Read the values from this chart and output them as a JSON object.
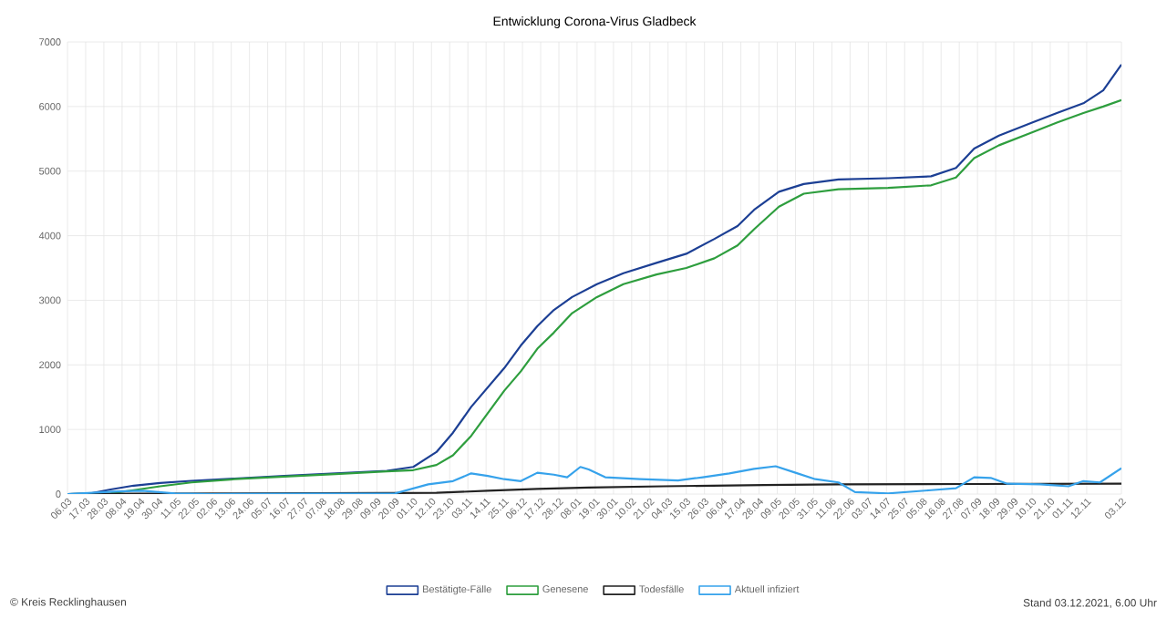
{
  "chart_data": {
    "type": "line",
    "title": "Entwicklung Corona-Virus Gladbeck",
    "xlim": [
      "2020-03-06",
      "2021-12-03"
    ],
    "ylim": [
      0,
      7000
    ],
    "yticks": [
      0,
      1000,
      2000,
      3000,
      4000,
      5000,
      6000,
      7000
    ],
    "xticks": [
      {
        "value": "2020-03-06",
        "label": "06.03"
      },
      {
        "value": "2020-03-17",
        "label": "17.03"
      },
      {
        "value": "2020-03-28",
        "label": "28.03"
      },
      {
        "value": "2020-04-08",
        "label": "08.04"
      },
      {
        "value": "2020-04-19",
        "label": "19.04"
      },
      {
        "value": "2020-04-30",
        "label": "30.04"
      },
      {
        "value": "2020-05-11",
        "label": "11.05"
      },
      {
        "value": "2020-05-22",
        "label": "22.05"
      },
      {
        "value": "2020-06-02",
        "label": "02.06"
      },
      {
        "value": "2020-06-13",
        "label": "13.06"
      },
      {
        "value": "2020-06-24",
        "label": "24.06"
      },
      {
        "value": "2020-07-05",
        "label": "05.07"
      },
      {
        "value": "2020-07-16",
        "label": "16.07"
      },
      {
        "value": "2020-07-27",
        "label": "27.07"
      },
      {
        "value": "2020-08-07",
        "label": "07.08"
      },
      {
        "value": "2020-08-18",
        "label": "18.08"
      },
      {
        "value": "2020-08-29",
        "label": "29.08"
      },
      {
        "value": "2020-09-09",
        "label": "09.09"
      },
      {
        "value": "2020-09-20",
        "label": "20.09"
      },
      {
        "value": "2020-10-01",
        "label": "01.10"
      },
      {
        "value": "2020-10-12",
        "label": "12.10"
      },
      {
        "value": "2020-10-23",
        "label": "23.10"
      },
      {
        "value": "2020-11-03",
        "label": "03.11"
      },
      {
        "value": "2020-11-14",
        "label": "14.11"
      },
      {
        "value": "2020-11-25",
        "label": "25.11"
      },
      {
        "value": "2020-12-06",
        "label": "06.12"
      },
      {
        "value": "2020-12-17",
        "label": "17.12"
      },
      {
        "value": "2020-12-28",
        "label": "28.12"
      },
      {
        "value": "2021-01-08",
        "label": "08.01"
      },
      {
        "value": "2021-01-19",
        "label": "19.01"
      },
      {
        "value": "2021-01-30",
        "label": "30.01"
      },
      {
        "value": "2021-02-10",
        "label": "10.02"
      },
      {
        "value": "2021-02-21",
        "label": "21.02"
      },
      {
        "value": "2021-03-04",
        "label": "04.03"
      },
      {
        "value": "2021-03-15",
        "label": "15.03"
      },
      {
        "value": "2021-03-26",
        "label": "26.03"
      },
      {
        "value": "2021-04-06",
        "label": "06.04"
      },
      {
        "value": "2021-04-17",
        "label": "17.04"
      },
      {
        "value": "2021-04-28",
        "label": "28.04"
      },
      {
        "value": "2021-05-09",
        "label": "09.05"
      },
      {
        "value": "2021-05-20",
        "label": "20.05"
      },
      {
        "value": "2021-05-31",
        "label": "31.05"
      },
      {
        "value": "2021-06-11",
        "label": "11.06"
      },
      {
        "value": "2021-06-22",
        "label": "22.06"
      },
      {
        "value": "2021-07-03",
        "label": "03.07"
      },
      {
        "value": "2021-07-14",
        "label": "14.07"
      },
      {
        "value": "2021-07-25",
        "label": "25.07"
      },
      {
        "value": "2021-08-05",
        "label": "05.08"
      },
      {
        "value": "2021-08-16",
        "label": "16.08"
      },
      {
        "value": "2021-08-27",
        "label": "27.08"
      },
      {
        "value": "2021-09-07",
        "label": "07.09"
      },
      {
        "value": "2021-09-18",
        "label": "18.09"
      },
      {
        "value": "2021-09-29",
        "label": "29.09"
      },
      {
        "value": "2021-10-10",
        "label": "10.10"
      },
      {
        "value": "2021-10-21",
        "label": "21.10"
      },
      {
        "value": "2021-11-01",
        "label": "01.11"
      },
      {
        "value": "2021-11-12",
        "label": "12.11"
      },
      {
        "value": "2021-12-03",
        "label": "03.12"
      }
    ],
    "grid": true,
    "legend": "bottom",
    "marker": "none",
    "line_style": "solid",
    "series": [
      {
        "name": "Bestätigte-Fälle",
        "color": "#1c3f94",
        "x": [
          "2020-03-06",
          "2020-03-20",
          "2020-04-01",
          "2020-04-15",
          "2020-05-01",
          "2020-05-20",
          "2020-06-15",
          "2020-07-15",
          "2020-08-15",
          "2020-09-15",
          "2020-10-01",
          "2020-10-15",
          "2020-10-25",
          "2020-11-05",
          "2020-11-15",
          "2020-11-25",
          "2020-12-05",
          "2020-12-15",
          "2020-12-25",
          "2021-01-05",
          "2021-01-20",
          "2021-02-05",
          "2021-02-25",
          "2021-03-15",
          "2021-04-01",
          "2021-04-15",
          "2021-04-25",
          "2021-05-10",
          "2021-05-25",
          "2021-06-15",
          "2021-07-15",
          "2021-08-10",
          "2021-08-25",
          "2021-09-05",
          "2021-09-20",
          "2021-10-10",
          "2021-10-25",
          "2021-11-10",
          "2021-11-22",
          "2021-12-03"
        ],
        "values": [
          0,
          10,
          70,
          130,
          170,
          205,
          240,
          280,
          320,
          360,
          420,
          650,
          950,
          1350,
          1650,
          1950,
          2300,
          2600,
          2850,
          3050,
          3250,
          3420,
          3580,
          3720,
          3950,
          4150,
          4400,
          4680,
          4800,
          4870,
          4890,
          4920,
          5050,
          5350,
          5550,
          5750,
          5900,
          6050,
          6250,
          6650
        ]
      },
      {
        "name": "Genesene",
        "color": "#2e9e3e",
        "x": [
          "2020-03-06",
          "2020-04-01",
          "2020-04-15",
          "2020-05-01",
          "2020-05-20",
          "2020-06-15",
          "2020-07-15",
          "2020-08-15",
          "2020-09-15",
          "2020-10-01",
          "2020-10-15",
          "2020-10-25",
          "2020-11-05",
          "2020-11-15",
          "2020-11-25",
          "2020-12-05",
          "2020-12-15",
          "2020-12-25",
          "2021-01-05",
          "2021-01-20",
          "2021-02-05",
          "2021-02-25",
          "2021-03-15",
          "2021-04-01",
          "2021-04-15",
          "2021-04-25",
          "2021-05-10",
          "2021-05-25",
          "2021-06-15",
          "2021-07-15",
          "2021-08-10",
          "2021-08-25",
          "2021-09-05",
          "2021-09-20",
          "2021-10-10",
          "2021-10-25",
          "2021-11-10",
          "2021-11-22",
          "2021-12-03"
        ],
        "values": [
          0,
          10,
          60,
          120,
          180,
          230,
          270,
          310,
          350,
          370,
          450,
          600,
          900,
          1250,
          1600,
          1900,
          2250,
          2500,
          2800,
          3050,
          3250,
          3400,
          3500,
          3650,
          3850,
          4100,
          4450,
          4650,
          4720,
          4740,
          4780,
          4900,
          5200,
          5400,
          5600,
          5750,
          5900,
          6000,
          6100
        ]
      },
      {
        "name": "Todesfälle",
        "color": "#222222",
        "x": [
          "2020-03-06",
          "2020-04-15",
          "2020-06-15",
          "2020-09-15",
          "2020-10-15",
          "2020-11-15",
          "2020-12-15",
          "2021-01-15",
          "2021-03-01",
          "2021-05-01",
          "2021-06-15",
          "2021-09-01",
          "2021-12-03"
        ],
        "values": [
          0,
          5,
          10,
          15,
          20,
          50,
          80,
          100,
          120,
          140,
          150,
          155,
          160
        ]
      },
      {
        "name": "Aktuell infiziert",
        "color": "#36a2eb",
        "x": [
          "2020-03-06",
          "2020-04-05",
          "2020-04-20",
          "2020-05-10",
          "2020-06-01",
          "2020-09-20",
          "2020-10-10",
          "2020-10-25",
          "2020-11-05",
          "2020-11-15",
          "2020-11-25",
          "2020-12-05",
          "2020-12-15",
          "2020-12-25",
          "2021-01-02",
          "2021-01-10",
          "2021-01-15",
          "2021-01-25",
          "2021-02-15",
          "2021-03-10",
          "2021-03-25",
          "2021-04-10",
          "2021-04-25",
          "2021-05-08",
          "2021-05-20",
          "2021-06-01",
          "2021-06-15",
          "2021-06-25",
          "2021-07-15",
          "2021-08-10",
          "2021-08-25",
          "2021-09-05",
          "2021-09-15",
          "2021-09-25",
          "2021-10-15",
          "2021-11-01",
          "2021-11-10",
          "2021-11-20",
          "2021-12-03"
        ],
        "values": [
          0,
          40,
          50,
          10,
          0,
          10,
          150,
          200,
          320,
          280,
          230,
          200,
          330,
          300,
          260,
          420,
          380,
          260,
          230,
          210,
          260,
          320,
          390,
          430,
          330,
          230,
          180,
          30,
          10,
          60,
          90,
          260,
          250,
          160,
          150,
          120,
          200,
          180,
          400
        ]
      }
    ],
    "annotations": [
      "© Kreis Recklinghausen",
      "Stand 03.12.2021, 6.00 Uhr"
    ]
  }
}
